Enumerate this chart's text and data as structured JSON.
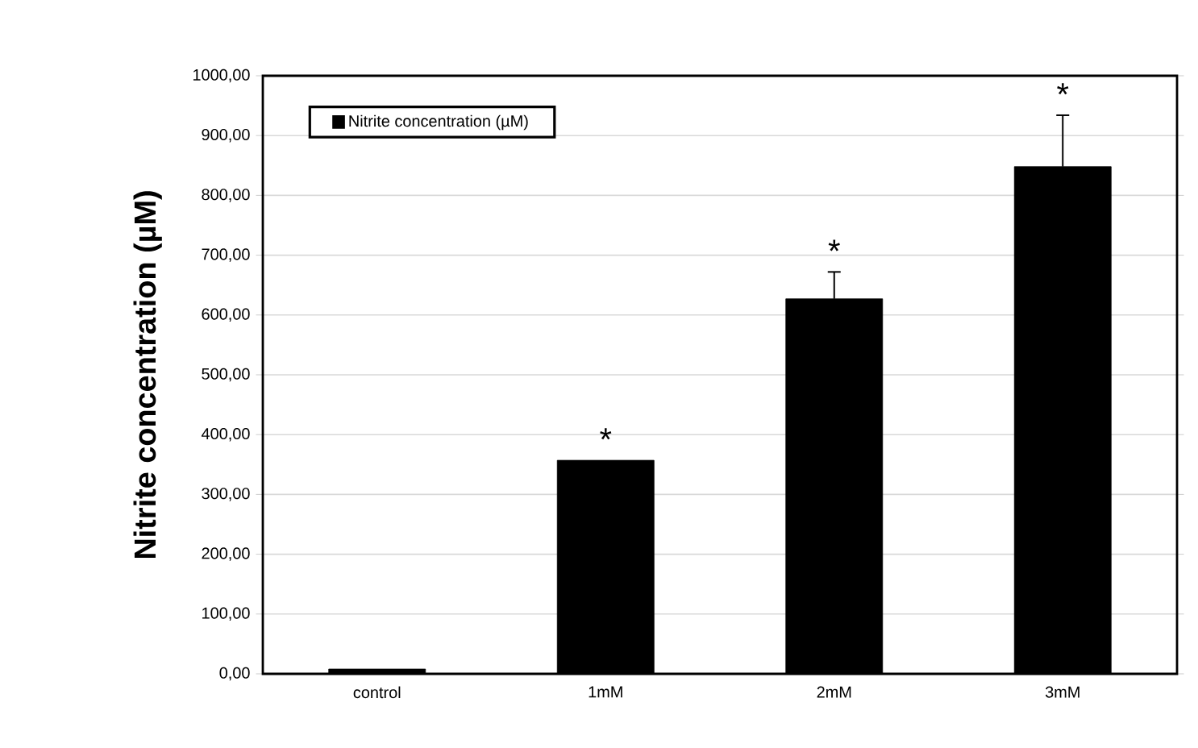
{
  "chart_data": {
    "type": "bar",
    "ylabel": "Nitrite concentration (µM)",
    "categories": [
      "control",
      "1mM",
      "2mM",
      "3mM"
    ],
    "series": [
      {
        "name": "Nitrite concentration (µM)",
        "color": "#000000",
        "values": [
          8,
          357,
          627,
          848
        ],
        "errors": [
          null,
          null,
          [
            627,
            672
          ],
          [
            848,
            934
          ]
        ]
      }
    ],
    "ylim": [
      0,
      1000
    ],
    "yticks": [
      {
        "value": 0,
        "label": "0,00"
      },
      {
        "value": 100,
        "label": "100,00"
      },
      {
        "value": 200,
        "label": "200,00"
      },
      {
        "value": 300,
        "label": "300,00"
      },
      {
        "value": 400,
        "label": "400,00"
      },
      {
        "value": 500,
        "label": "500,00"
      },
      {
        "value": 600,
        "label": "600,00"
      },
      {
        "value": 700,
        "label": "700,00"
      },
      {
        "value": 800,
        "label": "800,00"
      },
      {
        "value": 900,
        "label": "900,00"
      },
      {
        "value": 1000,
        "label": "1000,00"
      }
    ],
    "annotations": [
      "*",
      "*",
      "*"
    ],
    "grid": "y",
    "legend": "top left"
  }
}
